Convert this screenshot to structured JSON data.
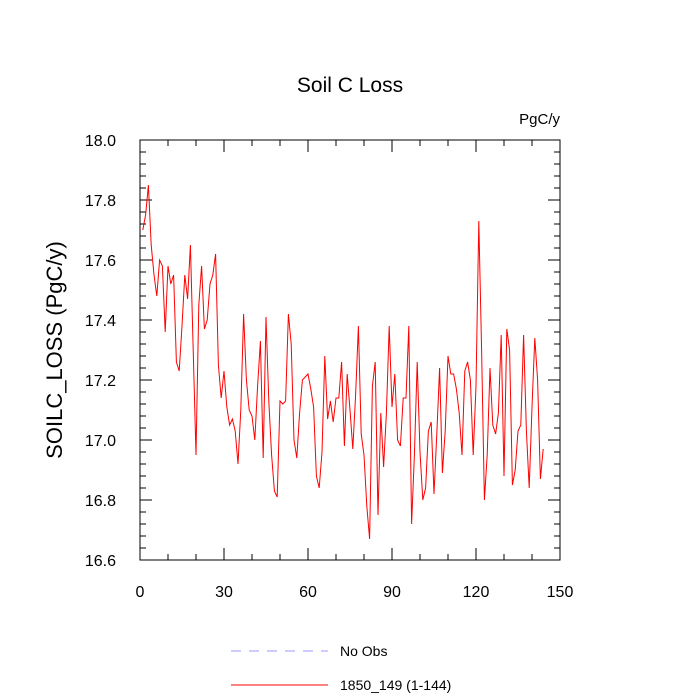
{
  "chart_data": {
    "type": "line",
    "title": "Soil C Loss",
    "units": "PgC/y",
    "xlabel": "",
    "ylabel": "SOILC_LOSS  (PgC/y)",
    "xlim": [
      0,
      150
    ],
    "ylim": [
      16.6,
      18.0
    ],
    "xticks": [
      0,
      30,
      60,
      90,
      120,
      150
    ],
    "yticks": [
      16.6,
      16.8,
      17.0,
      17.2,
      17.4,
      17.6,
      17.8,
      18.0
    ],
    "ytick_labels": [
      "16.6",
      "16.8",
      "17.0",
      "17.2",
      "17.4",
      "17.6",
      "17.8",
      "18.0"
    ],
    "grid": false,
    "legend": [
      {
        "label": "No Obs",
        "color": "#9999ff",
        "style": "dashed"
      },
      {
        "label": "1850_149 (1-144)",
        "color": "#ff0000",
        "style": "solid"
      }
    ],
    "series": [
      {
        "name": "1850_149 (1-144)",
        "color": "#ff0000",
        "x_start": 1,
        "values": [
          17.7,
          17.75,
          17.85,
          17.65,
          17.55,
          17.48,
          17.6,
          17.58,
          17.36,
          17.58,
          17.52,
          17.55,
          17.26,
          17.23,
          17.38,
          17.55,
          17.47,
          17.65,
          17.3,
          16.95,
          17.45,
          17.58,
          17.37,
          17.4,
          17.52,
          17.55,
          17.62,
          17.25,
          17.14,
          17.23,
          17.11,
          17.05,
          17.07,
          17.03,
          16.92,
          17.1,
          17.42,
          17.2,
          17.1,
          17.08,
          17.0,
          17.18,
          17.33,
          16.94,
          17.41,
          17.13,
          16.95,
          16.83,
          16.81,
          17.13,
          17.12,
          17.13,
          17.42,
          17.32,
          17.0,
          16.94,
          17.09,
          17.2,
          17.21,
          17.22,
          17.17,
          17.11,
          16.88,
          16.84,
          16.96,
          17.28,
          17.07,
          17.13,
          17.06,
          17.14,
          17.14,
          17.26,
          16.98,
          17.22,
          17.1,
          16.97,
          17.15,
          17.38,
          17.02,
          16.95,
          16.78,
          16.67,
          17.18,
          17.26,
          16.75,
          17.09,
          16.91,
          17.09,
          17.38,
          17.11,
          17.22,
          17.0,
          16.98,
          17.14,
          17.14,
          17.38,
          16.72,
          16.95,
          17.26,
          16.96,
          16.8,
          16.84,
          17.03,
          17.06,
          16.82,
          17.02,
          17.24,
          16.89,
          17.03,
          17.28,
          17.22,
          17.22,
          17.17,
          17.09,
          16.95,
          17.23,
          17.26,
          17.2,
          16.95,
          17.18,
          17.73,
          17.3,
          16.8,
          16.95,
          17.24,
          17.05,
          17.02,
          17.09,
          17.35,
          16.88,
          17.37,
          17.3,
          16.85,
          16.9,
          17.03,
          17.05,
          17.35,
          17.03,
          16.84,
          17.11,
          17.34,
          17.2,
          16.87,
          16.97
        ]
      }
    ]
  }
}
